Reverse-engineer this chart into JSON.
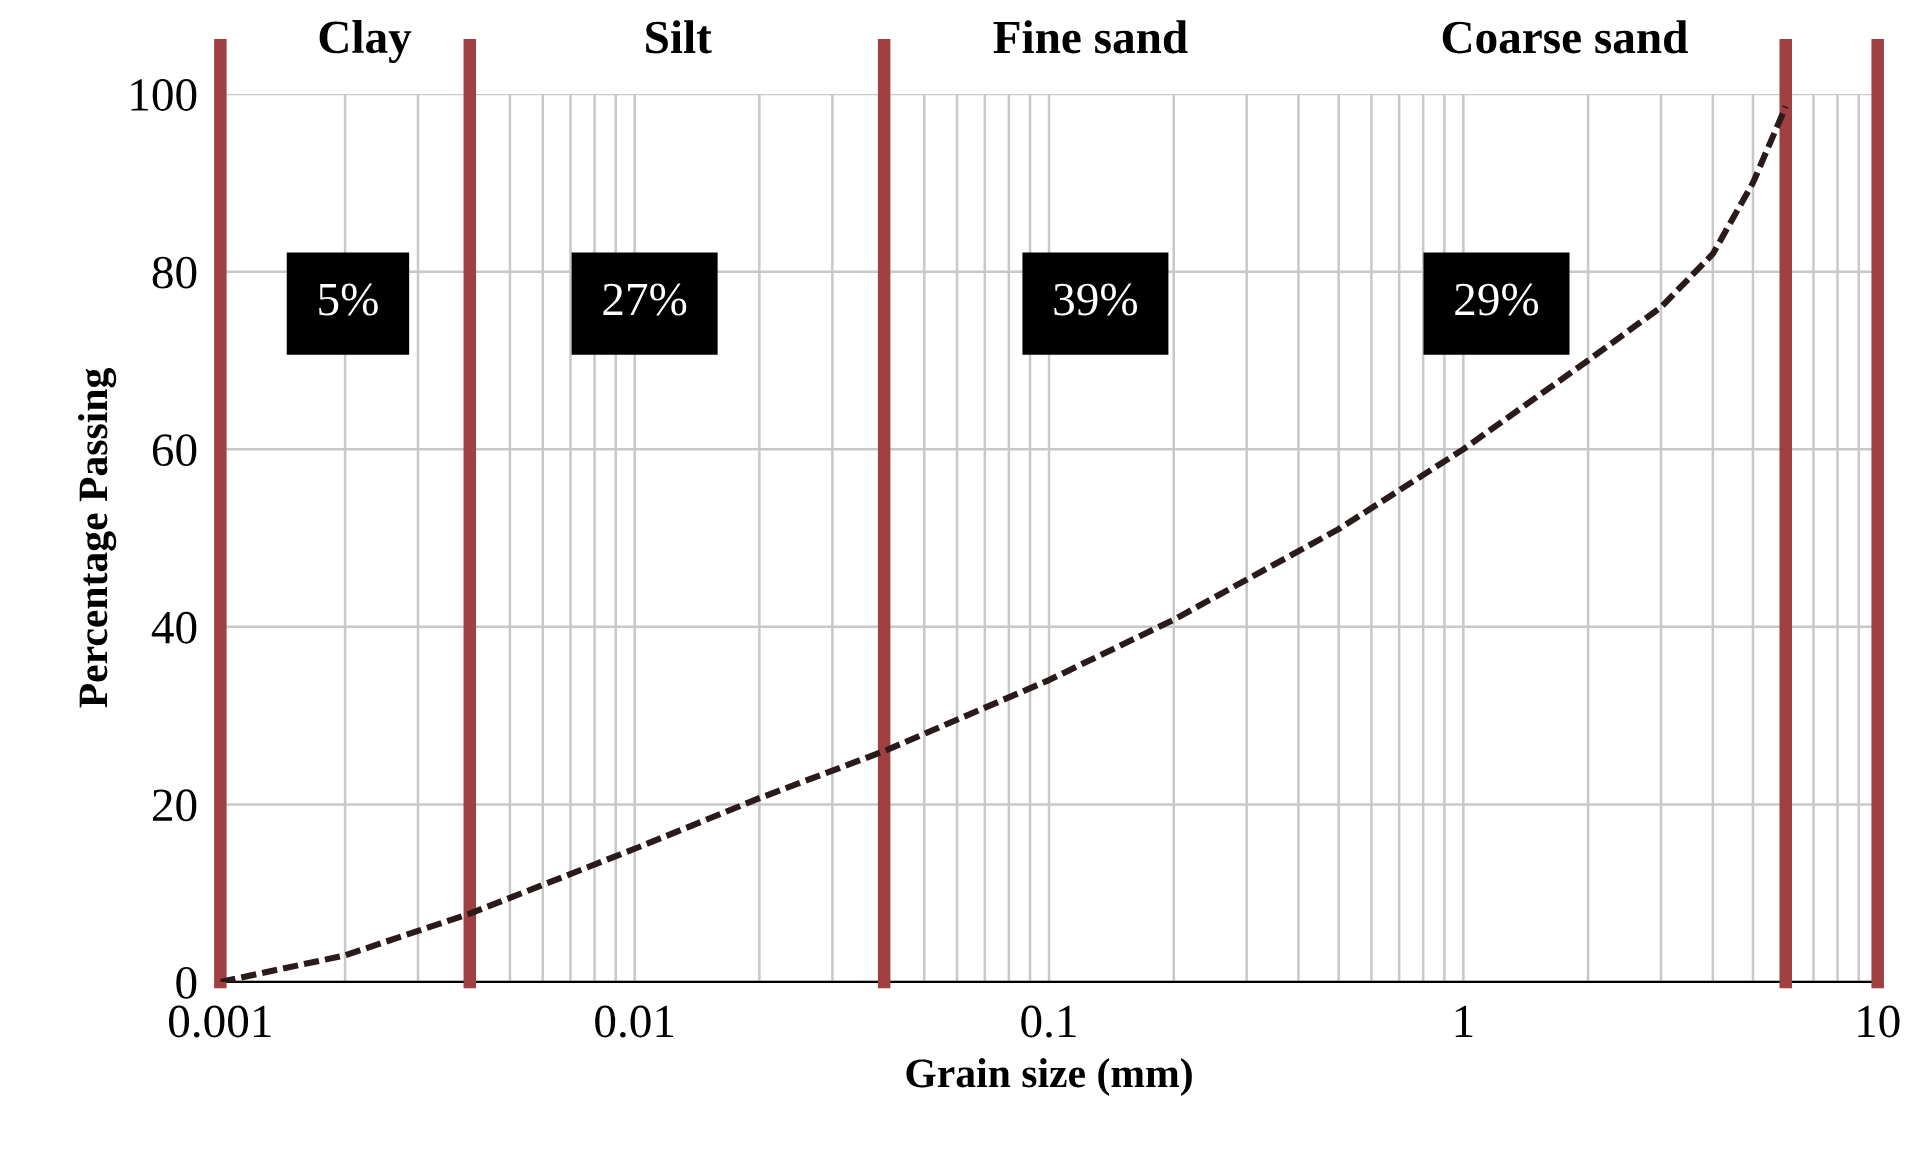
{
  "chart_data": {
    "type": "line",
    "xlabel": "Grain size (mm)",
    "ylabel": "Percentage Passing",
    "log": "x",
    "xlim": [
      0.001,
      10
    ],
    "xticks": [
      0.001,
      0.01,
      0.1,
      1,
      10
    ],
    "ylim": [
      0,
      100
    ],
    "yticks": [
      0,
      20,
      40,
      60,
      80,
      100
    ],
    "grid": true,
    "line_style": "dashed",
    "marker": "none",
    "series": [
      {
        "color": "#2a1a1a",
        "x": [
          0.001,
          0.002,
          0.004,
          0.01,
          0.02,
          0.04,
          0.1,
          0.2,
          0.5,
          1,
          2,
          3,
          4,
          5,
          6
        ],
        "values": [
          0,
          3,
          7.7,
          15,
          20.7,
          26,
          34,
          40.8,
          51,
          60,
          70,
          76,
          82,
          90,
          98.6
        ]
      }
    ],
    "ref_lines": [
      {
        "axis": "x",
        "value": 0.001,
        "color": "#a04040"
      },
      {
        "axis": "x",
        "value": 0.004,
        "color": "#a04040"
      },
      {
        "axis": "x",
        "value": 0.04,
        "color": "#a04040"
      },
      {
        "axis": "x",
        "value": 6,
        "color": "#a04040"
      },
      {
        "axis": "x",
        "value": 10,
        "color": "#a04040"
      }
    ],
    "annotations": [
      "Clay",
      "Silt",
      "Fine sand",
      "Coarse sand",
      "5%",
      "27%",
      "39%",
      "29%"
    ]
  }
}
